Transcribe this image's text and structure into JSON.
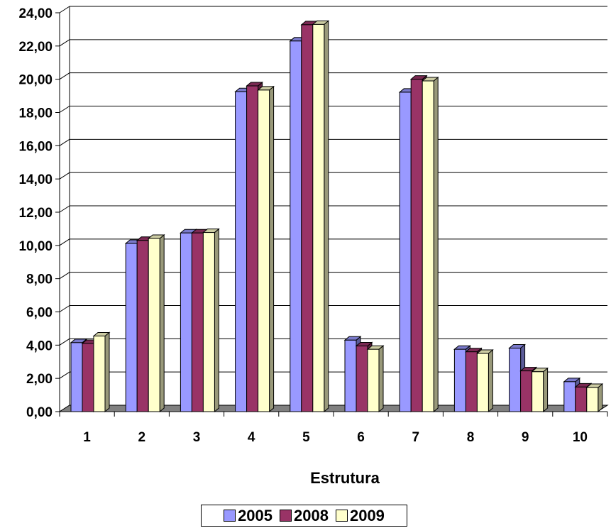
{
  "chart_data": {
    "type": "bar",
    "title": "",
    "xlabel": "Estrutura",
    "ylabel": "",
    "categories": [
      "1",
      "2",
      "3",
      "4",
      "5",
      "6",
      "7",
      "8",
      "9",
      "10"
    ],
    "ylim": [
      0,
      24
    ],
    "yticks": [
      "0,00",
      "2,00",
      "4,00",
      "6,00",
      "8,00",
      "10,00",
      "12,00",
      "14,00",
      "16,00",
      "18,00",
      "20,00",
      "22,00",
      "24,00"
    ],
    "grid": true,
    "legend_position": "bottom",
    "style": "3d-clustered",
    "series": [
      {
        "name": "2005",
        "color": "#9999ff",
        "values": [
          4.15,
          10.12,
          10.75,
          19.25,
          22.3,
          4.3,
          19.22,
          3.75,
          3.82,
          1.8
        ]
      },
      {
        "name": "2008",
        "color": "#993366",
        "values": [
          4.1,
          10.3,
          10.75,
          19.6,
          23.28,
          3.95,
          20.0,
          3.6,
          2.45,
          1.48
        ]
      },
      {
        "name": "2009",
        "color": "#ffffcc",
        "values": [
          4.55,
          10.42,
          10.78,
          19.35,
          23.3,
          3.75,
          19.9,
          3.5,
          2.4,
          1.45
        ]
      }
    ]
  }
}
